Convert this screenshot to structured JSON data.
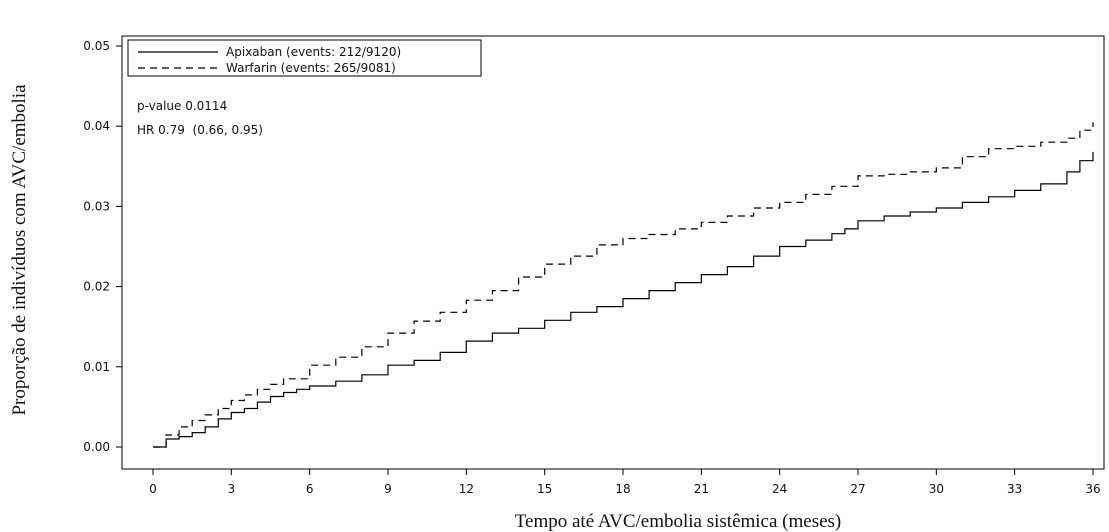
{
  "chart_data": {
    "type": "line",
    "step": true,
    "xlabel": "Tempo até AVC/embolia sistêmica (meses)",
    "ylabel": "Proporção de indivíduos com AVC/embolia",
    "xlim": [
      0,
      36
    ],
    "ylim": [
      0,
      0.05
    ],
    "xticks": [
      0,
      3,
      6,
      9,
      12,
      15,
      18,
      21,
      24,
      27,
      30,
      33,
      36
    ],
    "xtick_labels": [
      "0",
      "3",
      "6",
      "9",
      "12",
      "15",
      "18",
      "21",
      "24",
      "27",
      "30",
      "33",
      "36"
    ],
    "yticks": [
      0,
      0.01,
      0.02,
      0.03,
      0.04,
      0.05
    ],
    "ytick_labels": [
      "0.00",
      "0.01",
      "0.02",
      "0.03",
      "0.04",
      "0.05"
    ],
    "grid": false,
    "legend_position": "top-left",
    "annotations": [
      "p-value 0.0114",
      "HR 0.79  (0.66, 0.95)"
    ],
    "series": [
      {
        "name": "Apixaban (events: 212/9120)",
        "line_style": "solid",
        "color": "#000000",
        "x": [
          0,
          0.5,
          1,
          1.5,
          2,
          2.5,
          3,
          3.5,
          4,
          4.5,
          5,
          5.5,
          6,
          7,
          8,
          9,
          10,
          11,
          12,
          13,
          14,
          15,
          16,
          17,
          18,
          19,
          20,
          21,
          22,
          23,
          24,
          25,
          26,
          26.5,
          27,
          28,
          29,
          30,
          31,
          32,
          33,
          34,
          35,
          35.5,
          36
        ],
        "y": [
          0,
          0.001,
          0.0013,
          0.0018,
          0.0025,
          0.0035,
          0.0043,
          0.0048,
          0.0056,
          0.0063,
          0.0068,
          0.0072,
          0.0076,
          0.0082,
          0.009,
          0.0102,
          0.0108,
          0.0118,
          0.0132,
          0.0142,
          0.0148,
          0.0158,
          0.0168,
          0.0175,
          0.0185,
          0.0195,
          0.0205,
          0.0215,
          0.0225,
          0.0238,
          0.025,
          0.0258,
          0.0266,
          0.0272,
          0.0282,
          0.0288,
          0.0293,
          0.0298,
          0.0305,
          0.0312,
          0.032,
          0.0328,
          0.0343,
          0.0357,
          0.0368
        ]
      },
      {
        "name": "Warfarin (events: 265/9081)",
        "line_style": "dashed",
        "color": "#000000",
        "x": [
          0,
          0.5,
          1,
          1.5,
          2,
          2.5,
          3,
          3.5,
          4,
          4.5,
          5,
          6,
          7,
          8,
          9,
          10,
          11,
          12,
          13,
          14,
          15,
          16,
          17,
          18,
          19,
          20,
          21,
          22,
          23,
          24,
          25,
          26,
          27,
          28,
          29,
          30,
          31,
          32,
          33,
          34,
          35,
          35.5,
          36
        ],
        "y": [
          0,
          0.0015,
          0.0025,
          0.0033,
          0.004,
          0.0048,
          0.0058,
          0.0065,
          0.0072,
          0.0078,
          0.0085,
          0.0102,
          0.0112,
          0.0125,
          0.0142,
          0.0157,
          0.0168,
          0.0183,
          0.0195,
          0.0212,
          0.0228,
          0.0238,
          0.0252,
          0.026,
          0.0265,
          0.0272,
          0.028,
          0.0288,
          0.0298,
          0.0305,
          0.0315,
          0.0325,
          0.0338,
          0.034,
          0.0343,
          0.0348,
          0.0362,
          0.0372,
          0.0375,
          0.038,
          0.0385,
          0.0395,
          0.0405
        ]
      }
    ]
  }
}
